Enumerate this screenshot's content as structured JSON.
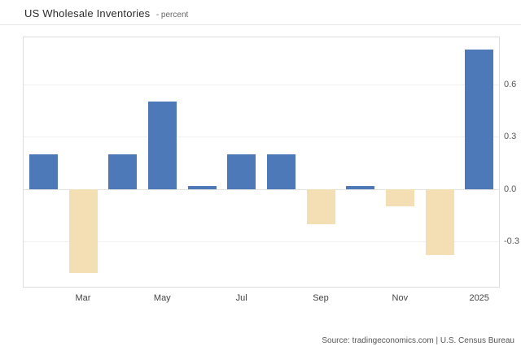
{
  "header": {
    "title": "US Wholesale Inventories",
    "subtitle": "- percent"
  },
  "chart_data": {
    "type": "bar",
    "title": "US Wholesale Inventories",
    "ylabel": "percent",
    "xlabel": "",
    "categories": [
      "",
      "Mar",
      "",
      "May",
      "",
      "Jul",
      "",
      "Sep",
      "",
      "Nov",
      "",
      "2025"
    ],
    "values": [
      0.2,
      -0.48,
      0.2,
      0.5,
      0.02,
      0.2,
      0.2,
      -0.2,
      0.02,
      -0.1,
      -0.38,
      0.8
    ],
    "x_tick_labels": [
      "Mar",
      "May",
      "Jul",
      "Sep",
      "Nov",
      "2025"
    ],
    "x_tick_positions": [
      1,
      3,
      5,
      7,
      9,
      11
    ],
    "y_ticks": [
      0.6,
      0.3,
      0.0,
      -0.3
    ],
    "ylim": [
      -0.56,
      0.87
    ],
    "grid": true,
    "legend": "none",
    "colors": {
      "positive": "#4e79b8",
      "negative": "#f4deb4"
    }
  },
  "footer": {
    "source": "Source: tradingeconomics.com | U.S. Census Bureau"
  }
}
